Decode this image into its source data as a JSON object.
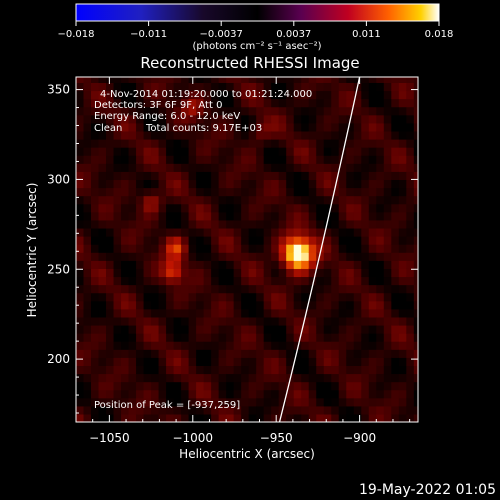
{
  "colorbar": {
    "ticks": [
      "-0.018",
      "-0.011",
      "-0.0037",
      "0.0037",
      "0.011",
      "0.018"
    ],
    "unit_line": "(photons cm⁻² s⁻¹ asec⁻²)",
    "range": [
      -0.018,
      0.018
    ]
  },
  "colors": {
    "background": "#000000",
    "text": "#ffffff",
    "limb": "#ffffff"
  },
  "chart_data": {
    "type": "heatmap",
    "title": "Reconstructed RHESSI Image",
    "xlabel": "Heliocentric X (arcsec)",
    "ylabel": "Heliocentric Y (arcsec)",
    "xlim": [
      -1070,
      -865
    ],
    "ylim": [
      165,
      357
    ],
    "x_ticks": [
      -1050,
      -1000,
      -950,
      -900
    ],
    "y_ticks": [
      200,
      250,
      300,
      350
    ],
    "x_tick_labels": [
      "−1050",
      "−1000",
      "−950",
      "−900"
    ],
    "y_tick_labels": [
      "200",
      "250",
      "300",
      "350"
    ],
    "annotations": {
      "time": "4-Nov-2014 01:19:20.000 to 01:21:24.000",
      "detectors": "Detectors: 3F 6F 9F, Att 0",
      "energy": "Energy Range: 6.0 - 12.0 keV",
      "method": "Clean",
      "counts": "Total counts: 9.17E+03",
      "peak": "Position of Peak = [-937,259]"
    },
    "peak_position": [
      -937,
      259
    ],
    "sources": [
      {
        "x": -937,
        "y": 259,
        "intensity": 1.0
      },
      {
        "x": -1010,
        "y": 262,
        "intensity": 0.55
      },
      {
        "x": -1012,
        "y": 249,
        "intensity": 0.6
      },
      {
        "x": -1025,
        "y": 288,
        "intensity": 0.4
      },
      {
        "x": -1000,
        "y": 340,
        "intensity": 0.3
      },
      {
        "x": -960,
        "y": 327,
        "intensity": 0.3
      }
    ],
    "limb_points": [
      [
        -948,
        165
      ],
      [
        -925,
        250
      ],
      [
        -900,
        357
      ]
    ]
  },
  "timestamp": "19-May-2022 01:05"
}
